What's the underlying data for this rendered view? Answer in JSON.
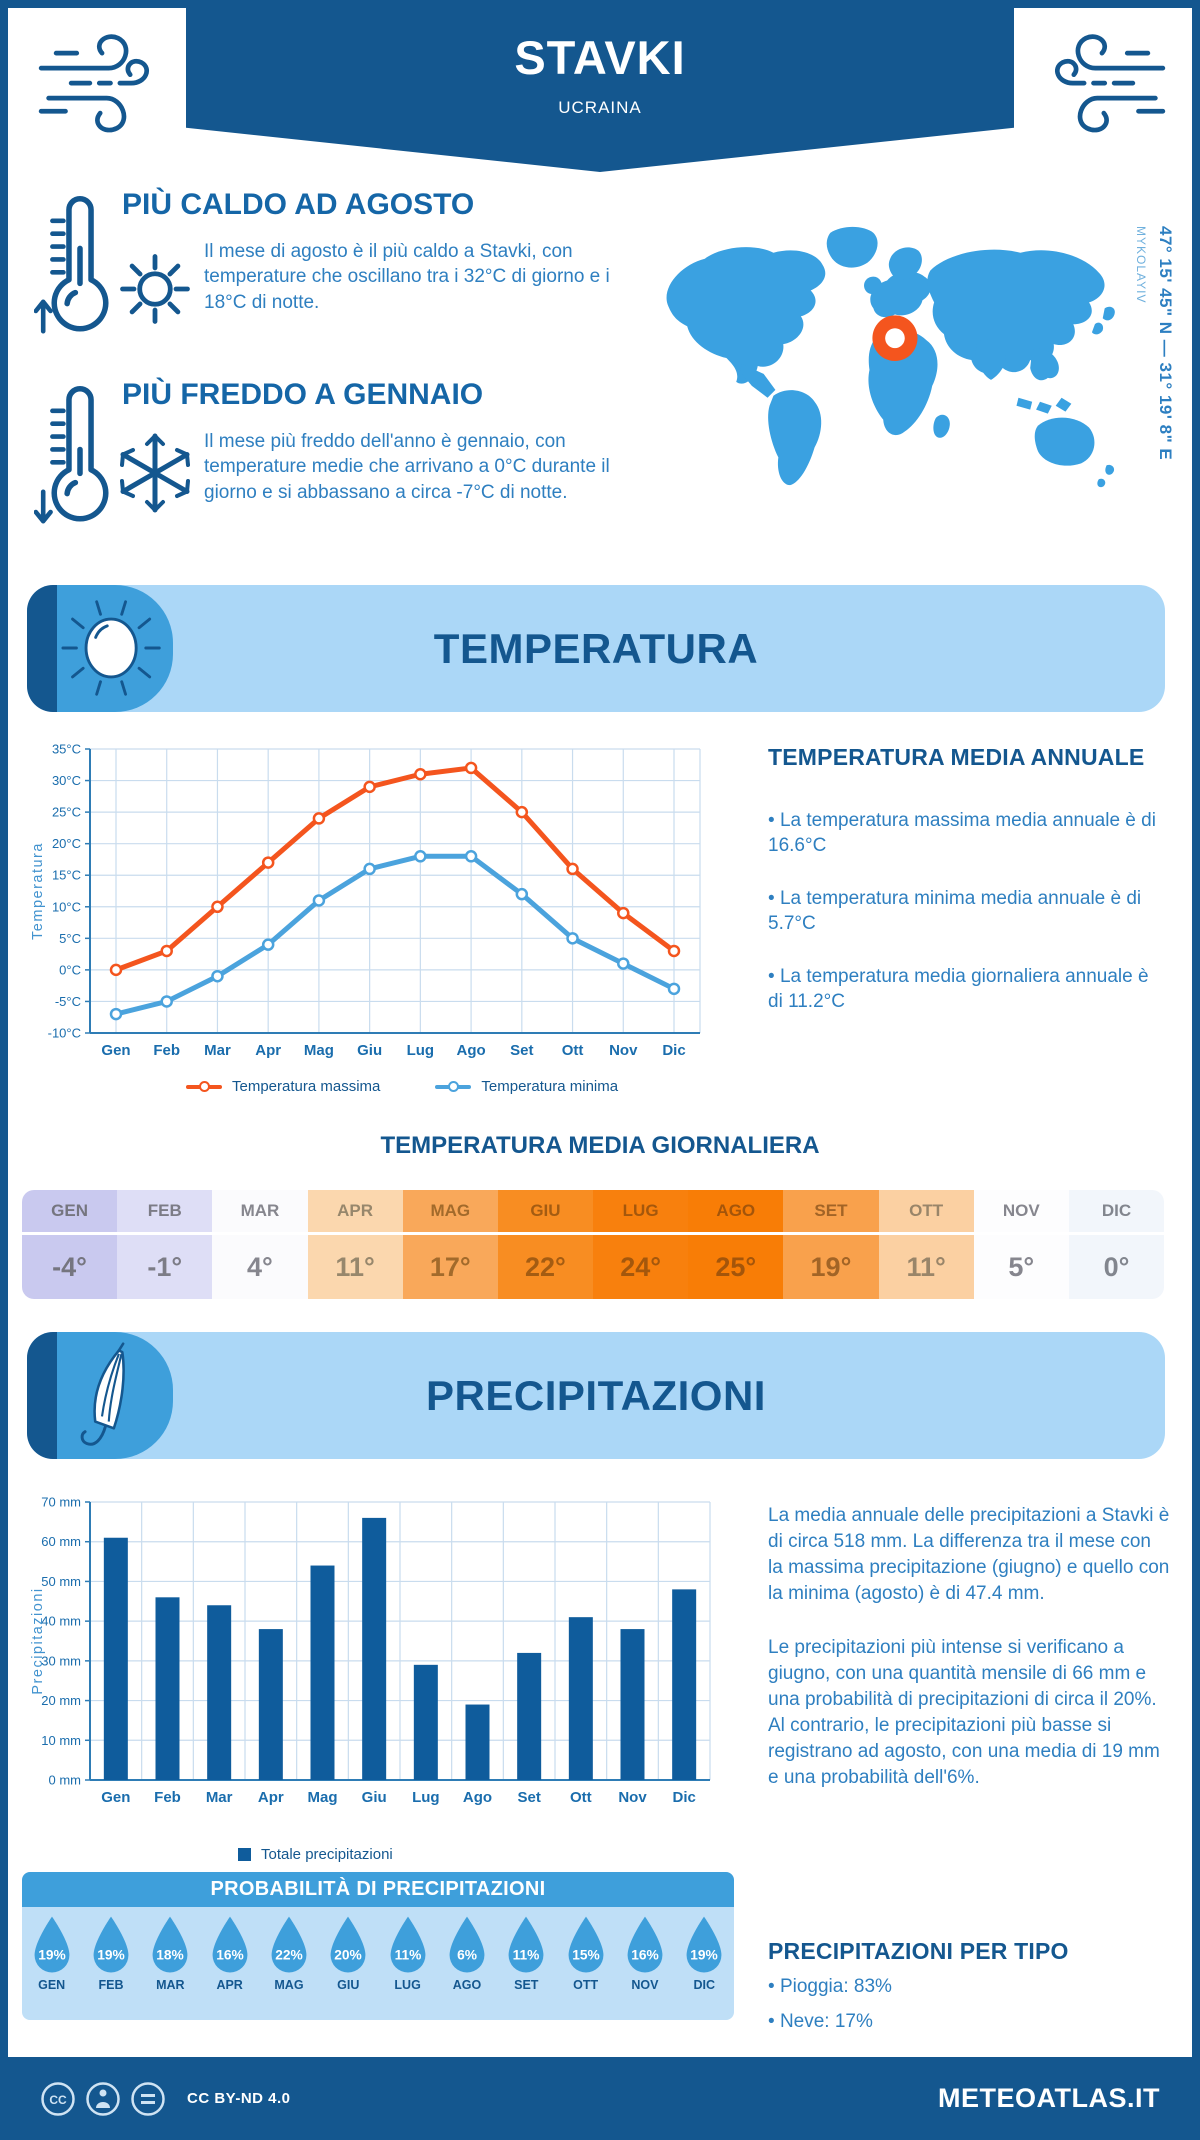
{
  "header": {
    "title": "STAVKI",
    "subtitle": "UCRAINA"
  },
  "highlights": [
    {
      "title": "PIÙ CALDO AD AGOSTO",
      "text": "Il mese di agosto è il più caldo a Stavki, con temperature che oscillano tra i 32°C di giorno e i 18°C di notte."
    },
    {
      "title": "PIÙ FREDDO A GENNAIO",
      "text": "Il mese più freddo dell'anno è gennaio, con temperature medie che arrivano a 0°C durante il giorno e si abbassano a circa -7°C di notte."
    }
  ],
  "map": {
    "coordinates": "47° 15' 45\" N — 31° 19' 8\" E",
    "region": "MYKOLAYIV",
    "land_color": "#3AA1E1",
    "marker_color": "#F4551E"
  },
  "temperature_section": {
    "banner_title": "TEMPERATURA",
    "annual": {
      "heading": "TEMPERATURA MEDIA ANNUALE",
      "bullets": [
        "La temperatura massima media annuale è di 16.6°C",
        "La temperatura minima media annuale è di 5.7°C",
        "La temperatura media giornaliera annuale è di 11.2°C"
      ]
    },
    "daily_heading": "TEMPERATURA MEDIA GIORNALIERA",
    "monthly_table": [
      {
        "month": "GEN",
        "value": "-4°",
        "bg": "#c9c9ef",
        "fg": "#75757f"
      },
      {
        "month": "FEB",
        "value": "-1°",
        "bg": "#dedef6",
        "fg": "#7c7c86"
      },
      {
        "month": "MAR",
        "value": "4°",
        "bg": "#fbfbfd",
        "fg": "#86868e"
      },
      {
        "month": "APR",
        "value": "11°",
        "bg": "#fbd7ae",
        "fg": "#97876c"
      },
      {
        "month": "MAG",
        "value": "17°",
        "bg": "#f9a85a",
        "fg": "#a26a2b"
      },
      {
        "month": "GIU",
        "value": "22°",
        "bg": "#f88d22",
        "fg": "#a45c12"
      },
      {
        "month": "LUG",
        "value": "24°",
        "bg": "#f8800d",
        "fg": "#a4570c"
      },
      {
        "month": "AGO",
        "value": "25°",
        "bg": "#f87d06",
        "fg": "#a4550a"
      },
      {
        "month": "SET",
        "value": "19°",
        "bg": "#f9a14c",
        "fg": "#a26426"
      },
      {
        "month": "OTT",
        "value": "11°",
        "bg": "#fbd0a2",
        "fg": "#998569"
      },
      {
        "month": "NOV",
        "value": "5°",
        "bg": "#fdfdfe",
        "fg": "#86868e"
      },
      {
        "month": "DIC",
        "value": "0°",
        "bg": "#f2f6fb",
        "fg": "#82868e"
      }
    ]
  },
  "precipitation_section": {
    "banner_title": "PRECIPITAZIONI",
    "paragraphs": [
      "La media annuale delle precipitazioni a Stavki è di circa 518 mm. La differenza tra il mese con la massima precipitazione (giugno) e quello con la minima (agosto) è di 47.4 mm.",
      "Le precipitazioni più intense si verificano a giugno, con una quantità mensile di 66 mm e una probabilità di precipitazioni di circa il 20%. Al contrario, le precipitazioni più basse si registrano ad agosto, con una media di 19 mm e una probabilità dell'6%."
    ],
    "probability": {
      "heading": "PROBABILITÀ DI PRECIPITAZIONI",
      "items": [
        {
          "month": "GEN",
          "percent": "19%"
        },
        {
          "month": "FEB",
          "percent": "19%"
        },
        {
          "month": "MAR",
          "percent": "18%"
        },
        {
          "month": "APR",
          "percent": "16%"
        },
        {
          "month": "MAG",
          "percent": "22%"
        },
        {
          "month": "GIU",
          "percent": "20%"
        },
        {
          "month": "LUG",
          "percent": "11%"
        },
        {
          "month": "AGO",
          "percent": "6%"
        },
        {
          "month": "SET",
          "percent": "11%"
        },
        {
          "month": "OTT",
          "percent": "15%"
        },
        {
          "month": "NOV",
          "percent": "16%"
        },
        {
          "month": "DIC",
          "percent": "19%"
        }
      ]
    },
    "by_type": {
      "heading": "PRECIPITAZIONI PER TIPO",
      "bullets": [
        "Pioggia: 83%",
        "Neve: 17%"
      ]
    }
  },
  "chart_data": [
    {
      "type": "line",
      "title": "Temperatura media mensile",
      "ylabel": "Temperatura",
      "categories": [
        "Gen",
        "Feb",
        "Mar",
        "Apr",
        "Mag",
        "Giu",
        "Lug",
        "Ago",
        "Set",
        "Ott",
        "Nov",
        "Dic"
      ],
      "series": [
        {
          "name": "Temperatura massima",
          "color": "#F4551E",
          "values": [
            0,
            3,
            10,
            17,
            24,
            29,
            31,
            32,
            25,
            16,
            9,
            3
          ]
        },
        {
          "name": "Temperatura minima",
          "color": "#4BA3DD",
          "values": [
            -7,
            -5,
            -1,
            4,
            11,
            16,
            18,
            18,
            12,
            5,
            1,
            -3
          ]
        }
      ],
      "ylim": [
        -10,
        35
      ],
      "ytick_step": 5,
      "ytick_suffix": "°C",
      "grid": true,
      "legend_position": "bottom"
    },
    {
      "type": "bar",
      "title": "Precipitazioni mensili",
      "ylabel": "Precipitazioni",
      "categories": [
        "Gen",
        "Feb",
        "Mar",
        "Apr",
        "Mag",
        "Giu",
        "Lug",
        "Ago",
        "Set",
        "Ott",
        "Nov",
        "Dic"
      ],
      "series": [
        {
          "name": "Totale precipitazioni",
          "color": "#0F5C9C",
          "values": [
            61,
            46,
            44,
            38,
            54,
            66,
            29,
            19,
            32,
            41,
            38,
            48
          ]
        }
      ],
      "ylim": [
        0,
        70
      ],
      "ytick_step": 10,
      "ytick_suffix": " mm",
      "grid": true,
      "legend_position": "bottom"
    }
  ],
  "palette": {
    "primary": "#14578F",
    "medium_blue": "#3E9FDB",
    "light_banner": "#ABD7F7",
    "grid": "#C9DCEE",
    "axis": "#2E7CB5",
    "tick_text": "#1A6DAD",
    "axis_title": "#4293CF",
    "droplet": "#3E9FDB",
    "body_text": "#2E7FC0"
  },
  "footer": {
    "license": "CC BY-ND 4.0",
    "site": "METEOATLAS.IT"
  }
}
